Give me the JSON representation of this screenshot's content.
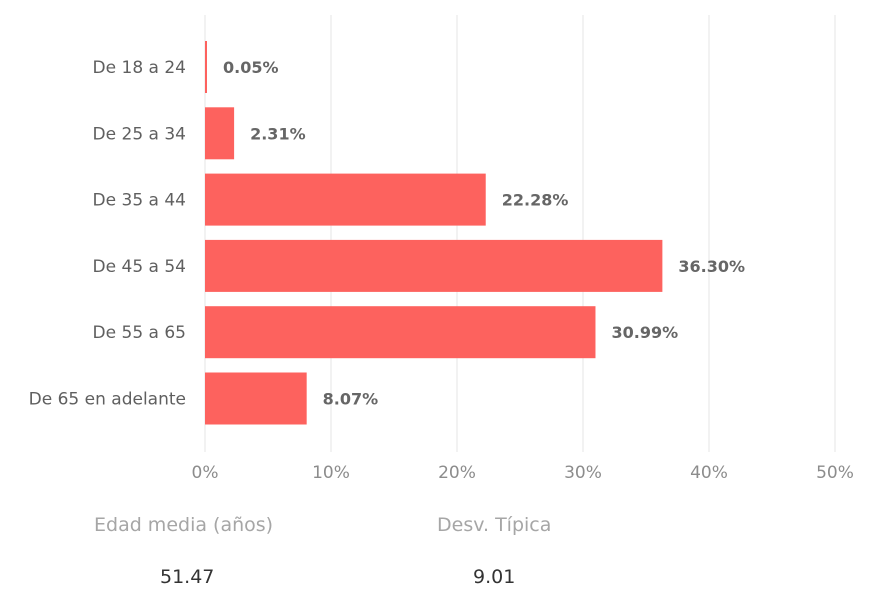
{
  "chart_data": {
    "type": "bar",
    "orientation": "horizontal",
    "categories": [
      "De 18 a 24",
      "De 25 a 34",
      "De 35 a 44",
      "De 45 a 54",
      "De 55 a 65",
      "De 65 en adelante"
    ],
    "values": [
      0.05,
      2.31,
      22.28,
      36.3,
      30.99,
      8.07
    ],
    "data_labels": [
      "0.05%",
      "2.31%",
      "22.28%",
      "36.30%",
      "30.99%",
      "8.07%"
    ],
    "x_ticks": [
      "0%",
      "10%",
      "20%",
      "30%",
      "40%",
      "50%"
    ],
    "xlim": [
      0,
      50
    ],
    "grid": true,
    "bar_color": "#fd625e",
    "title": "",
    "xlabel": "",
    "ylabel": ""
  },
  "stats": {
    "mean_label": "Edad media (años)",
    "mean_value": "51.47",
    "std_label": "Desv. Típica",
    "std_value": "9.01"
  }
}
